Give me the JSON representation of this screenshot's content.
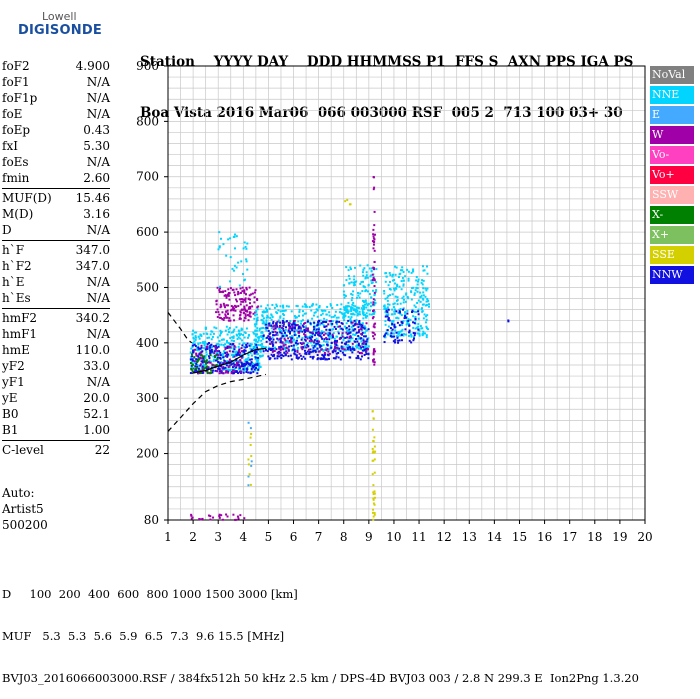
{
  "logo": {
    "line1": "Lowell",
    "line2": "DIGISONDE"
  },
  "header": {
    "row1": "Station    YYYY DAY    DDD HHMMSS P1  FFS S  AXN PPS IGA PS",
    "row2": "Boa Vista 2016 Mar06  066 003000 RSF  005 2  713 100 03+ 30"
  },
  "params": {
    "group1": [
      {
        "label": "foF2",
        "value": "4.900"
      },
      {
        "label": "foF1",
        "value": "N/A"
      },
      {
        "label": "foF1p",
        "value": "N/A"
      },
      {
        "label": "foE",
        "value": "N/A"
      },
      {
        "label": "foEp",
        "value": "0.43"
      },
      {
        "label": "fxI",
        "value": "5.30"
      },
      {
        "label": "foEs",
        "value": "N/A"
      },
      {
        "label": "fmin",
        "value": "2.60"
      }
    ],
    "group2": [
      {
        "label": "MUF(D)",
        "value": "15.46"
      },
      {
        "label": "M(D)",
        "value": "3.16"
      },
      {
        "label": "D",
        "value": "N/A"
      }
    ],
    "group3": [
      {
        "label": "h`F",
        "value": "347.0"
      },
      {
        "label": "h`F2",
        "value": "347.0"
      },
      {
        "label": "h`E",
        "value": "N/A"
      },
      {
        "label": "h`Es",
        "value": "N/A"
      }
    ],
    "group4": [
      {
        "label": "hmF2",
        "value": "340.2"
      },
      {
        "label": "hmF1",
        "value": "N/A"
      },
      {
        "label": "hmE",
        "value": "110.0"
      },
      {
        "label": "yF2",
        "value": "33.0"
      },
      {
        "label": "yF1",
        "value": "N/A"
      },
      {
        "label": "yE",
        "value": "20.0"
      },
      {
        "label": "B0",
        "value": "52.1"
      },
      {
        "label": "B1",
        "value": "1.00"
      }
    ],
    "group5": [
      {
        "label": "C-level",
        "value": "22"
      }
    ]
  },
  "auto": {
    "line1": "Auto:",
    "line2": "Artist5",
    "line3": "500200"
  },
  "footer": {
    "row1": "D     100  200  400  600  800 1000 1500 3000 [km]",
    "row2": "MUF   5.3  5.3  5.6  5.9  6.5  7.3  9.6 15.5 [MHz]",
    "row3": "BVJ03_2016066003000.RSF / 384fx512h 50 kHz 2.5 km / DPS-4D BVJ03 003 / 2.8 N 299.3 E  Ion2Png 1.3.20"
  },
  "legend": [
    {
      "label": "NoVal",
      "color": "#808080"
    },
    {
      "label": "NNE",
      "color": "#00d4ff"
    },
    {
      "label": "E",
      "color": "#44aaff"
    },
    {
      "label": "W",
      "color": "#a000a8"
    },
    {
      "label": "Vo-",
      "color": "#ff40c0"
    },
    {
      "label": "Vo+",
      "color": "#ff0040"
    },
    {
      "label": "SSW",
      "color": "#ffb0b0"
    },
    {
      "label": "X-",
      "color": "#008000"
    },
    {
      "label": "X+",
      "color": "#7cc060"
    },
    {
      "label": "SSE",
      "color": "#d4d000"
    },
    {
      "label": "NNW",
      "color": "#1010e0"
    }
  ],
  "chart_data": {
    "type": "scatter",
    "xlim": [
      1,
      20
    ],
    "ylim": [
      80,
      900
    ],
    "x_ticks": [
      "1",
      "2",
      "3",
      "4",
      "5",
      "6",
      "7",
      "8",
      "9",
      "10",
      "11",
      "12",
      "13",
      "14",
      "15",
      "16",
      "17",
      "18",
      "19",
      "20"
    ],
    "y_ticks": [
      "80",
      "200",
      "300",
      "400",
      "500",
      "600",
      "700",
      "800",
      "900"
    ],
    "grid": true,
    "legend_position": "right",
    "clusters": [
      {
        "x_range": [
          2.9,
          4.6
        ],
        "y_range": [
          440,
          500
        ],
        "color": "#a000a8",
        "count": 160
      },
      {
        "x_range": [
          1.9,
          4.8
        ],
        "y_range": [
          350,
          430
        ],
        "color": "#00d4ff",
        "count": 360
      },
      {
        "x_range": [
          1.9,
          4.6
        ],
        "y_range": [
          345,
          400
        ],
        "color": "#1010e0",
        "count": 260
      },
      {
        "x_range": [
          2.0,
          4.0
        ],
        "y_range": [
          345,
          395
        ],
        "color": "#a000a8",
        "count": 80
      },
      {
        "x_range": [
          1.9,
          3.0
        ],
        "y_range": [
          345,
          380
        ],
        "color": "#008000",
        "count": 40
      },
      {
        "x_range": [
          4.4,
          9.0
        ],
        "y_range": [
          385,
          470
        ],
        "color": "#00d4ff",
        "count": 520
      },
      {
        "x_range": [
          4.8,
          9.0
        ],
        "y_range": [
          370,
          440
        ],
        "color": "#1010e0",
        "count": 420
      },
      {
        "x_range": [
          5.0,
          9.0
        ],
        "y_range": [
          380,
          440
        ],
        "color": "#a000a8",
        "count": 110
      },
      {
        "x_range": [
          8.0,
          9.3
        ],
        "y_range": [
          450,
          540
        ],
        "color": "#00d4ff",
        "count": 140
      },
      {
        "x_range": [
          9.6,
          11.4
        ],
        "y_range": [
          410,
          540
        ],
        "color": "#00d4ff",
        "count": 260
      },
      {
        "x_range": [
          9.6,
          11.0
        ],
        "y_range": [
          400,
          460
        ],
        "color": "#1010e0",
        "count": 70
      },
      {
        "x_range": [
          3.0,
          4.2
        ],
        "y_range": [
          500,
          600
        ],
        "color": "#00d4ff",
        "count": 35
      },
      {
        "x_range": [
          9.15,
          9.25
        ],
        "y_range": [
          360,
          700
        ],
        "color": "#a000a8",
        "count": 60
      },
      {
        "x_range": [
          9.15,
          9.25
        ],
        "y_range": [
          80,
          280
        ],
        "color": "#d4d000",
        "count": 35
      },
      {
        "x_range": [
          4.2,
          4.35
        ],
        "y_range": [
          130,
          260
        ],
        "color": "#d4d000",
        "count": 8
      },
      {
        "x_range": [
          4.2,
          4.35
        ],
        "y_range": [
          130,
          260
        ],
        "color": "#44aaff",
        "count": 6
      },
      {
        "x_range": [
          1.9,
          4.2
        ],
        "y_range": [
          80,
          90
        ],
        "color": "#a000a8",
        "count": 25
      },
      {
        "x_range": [
          14.55,
          14.6
        ],
        "y_range": [
          438,
          442
        ],
        "color": "#1010e0",
        "count": 2
      },
      {
        "x_range": [
          8.0,
          8.3
        ],
        "y_range": [
          650,
          660
        ],
        "color": "#d4d000",
        "count": 4
      }
    ],
    "profile_solid": [
      [
        1.95,
        345
      ],
      [
        2.5,
        350
      ],
      [
        3.0,
        358
      ],
      [
        3.5,
        365
      ],
      [
        4.0,
        378
      ],
      [
        4.5,
        388
      ],
      [
        4.9,
        390
      ]
    ],
    "profile_dashed": [
      [
        1.0,
        455
      ],
      [
        1.5,
        425
      ],
      [
        1.8,
        405
      ],
      [
        1.95,
        400
      ]
    ],
    "profile_dashed_lower": [
      [
        1.0,
        240
      ],
      [
        1.5,
        265
      ],
      [
        2.0,
        290
      ],
      [
        2.5,
        312
      ],
      [
        3.0,
        323
      ],
      [
        3.5,
        330
      ],
      [
        4.0,
        334
      ],
      [
        4.4,
        338
      ],
      [
        4.9,
        343
      ]
    ]
  }
}
